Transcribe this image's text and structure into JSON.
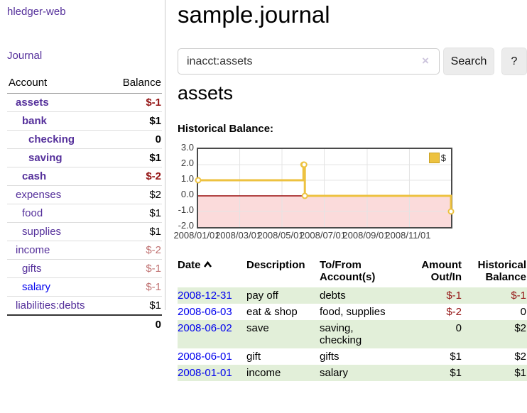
{
  "sidebar": {
    "brand": "hledger-web",
    "journal_link": "Journal",
    "accounts": {
      "header_account": "Account",
      "header_balance": "Balance",
      "rows": [
        {
          "name": "assets",
          "balance": "$-1"
        },
        {
          "name": "bank",
          "balance": "$1"
        },
        {
          "name": "checking",
          "balance": "0"
        },
        {
          "name": "saving",
          "balance": "$1"
        },
        {
          "name": "cash",
          "balance": "$-2"
        },
        {
          "name": "expenses",
          "balance": "$2"
        },
        {
          "name": "food",
          "balance": "$1"
        },
        {
          "name": "supplies",
          "balance": "$1"
        },
        {
          "name": "income",
          "balance": "$-2"
        },
        {
          "name": "gifts",
          "balance": "$-1"
        },
        {
          "name": "salary",
          "balance": "$-1"
        },
        {
          "name": "liabilities:debts",
          "balance": "$1"
        }
      ],
      "total": "0"
    }
  },
  "header": {
    "title": "sample.journal"
  },
  "search": {
    "value": "inacct:assets",
    "clear_icon": "×",
    "button_label": "Search",
    "help_label": "?"
  },
  "account_page": {
    "title": "assets",
    "chart_label": "Historical Balance:"
  },
  "chart_data": {
    "type": "line",
    "title": "Historical Balance:",
    "legend_position": "top-right",
    "grid": true,
    "ylim": [
      -2,
      3
    ],
    "yticks": [
      "3.0",
      "2.0",
      "1.0",
      "0.0",
      "-1.0",
      "-2.0"
    ],
    "xticks": [
      "2008/01/01",
      "2008/03/01",
      "2008/05/01",
      "2008/07/01",
      "2008/09/01",
      "2008/11/01"
    ],
    "xrange": [
      "2008-01-01",
      "2008-12-31"
    ],
    "series": [
      {
        "name": "$",
        "color": "#edc240",
        "style": "step-line-with-markers",
        "points": [
          {
            "x": "2008-01-01",
            "y": 1
          },
          {
            "x": "2008-06-01",
            "y": 2
          },
          {
            "x": "2008-06-02",
            "y": 2
          },
          {
            "x": "2008-06-03",
            "y": 0
          },
          {
            "x": "2008-12-31",
            "y": -1
          }
        ]
      }
    ],
    "negative_region_color": "#fbdbdb",
    "zero_line_color": "#990c0c"
  },
  "register": {
    "headers": {
      "date": "Date",
      "description": "Description",
      "accounts": "To/From Account(s)",
      "amount": "Amount Out/In",
      "balance": "Historical Balance"
    },
    "rows": [
      {
        "date": "2008-12-31",
        "description": "pay off",
        "accounts": "debts",
        "amount": "$-1",
        "balance": "$-1"
      },
      {
        "date": "2008-06-03",
        "description": "eat & shop",
        "accounts": "food, supplies",
        "amount": "$-2",
        "balance": "0"
      },
      {
        "date": "2008-06-02",
        "description": "save",
        "accounts": "saving,\nchecking",
        "amount": "0",
        "balance": "$2"
      },
      {
        "date": "2008-06-01",
        "description": "gift",
        "accounts": "gifts",
        "amount": "$1",
        "balance": "$2"
      },
      {
        "date": "2008-01-01",
        "description": "income",
        "accounts": "salary",
        "amount": "$1",
        "balance": "$1"
      }
    ]
  }
}
